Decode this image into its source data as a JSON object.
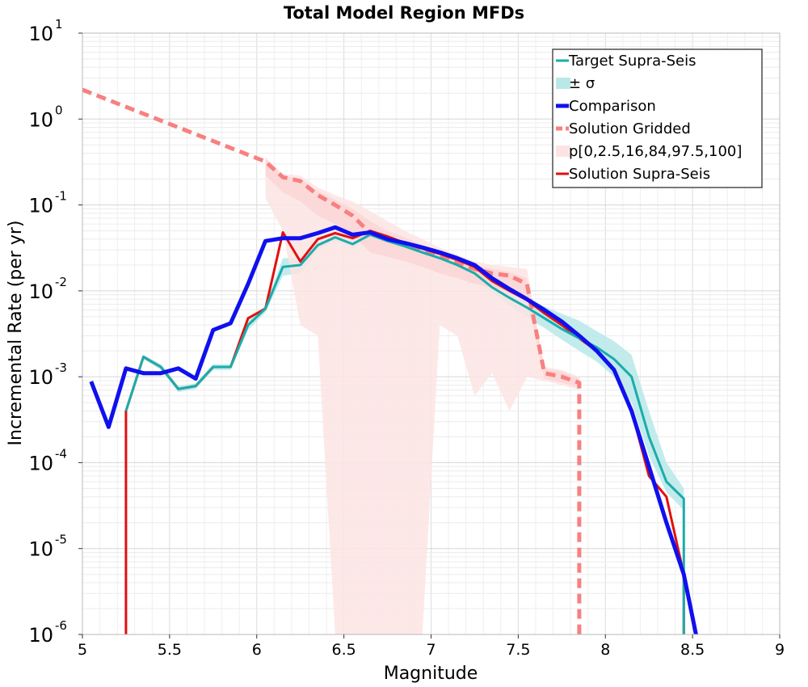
{
  "chart_data": {
    "type": "line",
    "title": "Total Model Region MFDs",
    "xlabel": "Magnitude",
    "ylabel": "Incremental Rate (per yr)",
    "xlim": [
      5,
      9
    ],
    "ylim_log10": [
      -6,
      1
    ],
    "yscale": "log",
    "grid": true,
    "legend_position": "top-right",
    "xticks": [
      5,
      5.5,
      6,
      6.5,
      7,
      7.5,
      8,
      8.5,
      9
    ],
    "xtick_labels": [
      "5",
      "5.5",
      "6",
      "6.5",
      "7",
      "7.5",
      "8",
      "8.5",
      "9"
    ],
    "ytick_exponents": [
      1,
      0,
      -1,
      -2,
      -3,
      -4,
      -5,
      -6
    ],
    "ytick_base": "10",
    "legend": [
      {
        "label": "Target Supra-Seis",
        "style": "line",
        "color": "#1aacac"
      },
      {
        "label": "± σ",
        "style": "band",
        "color": "#b9e8e8"
      },
      {
        "label": "Comparison",
        "style": "thick-line",
        "color": "#1010ee"
      },
      {
        "label": "Solution Gridded",
        "style": "dashed",
        "color": "#f88080"
      },
      {
        "label": "p[0,2.5,16,84,97.5,100]",
        "style": "band",
        "color": "#fde4e4"
      },
      {
        "label": "Solution Supra-Seis",
        "style": "line",
        "color": "#e01010"
      }
    ],
    "series": [
      {
        "name": "Solution Gridded",
        "color": "#f88080",
        "x": [
          5.0,
          5.05,
          6.05,
          6.15,
          6.25,
          6.35,
          6.45,
          6.55,
          6.65,
          6.75,
          6.85,
          6.95,
          7.05,
          7.15,
          7.25,
          7.35,
          7.45,
          7.55,
          7.65,
          7.75,
          7.85,
          7.85
        ],
        "y": [
          2.2,
          2.0,
          0.32,
          0.21,
          0.19,
          0.13,
          0.1,
          0.075,
          0.047,
          0.04,
          0.034,
          0.029,
          0.025,
          0.021,
          0.018,
          0.016,
          0.015,
          0.012,
          0.0011,
          0.001,
          0.00085,
          1e-06
        ]
      },
      {
        "name": "Solution Supra-Seis",
        "color": "#e01010",
        "x": [
          5.25,
          5.25,
          5.35,
          5.45,
          5.55,
          5.65,
          5.75,
          5.85,
          5.95,
          6.05,
          6.15,
          6.25,
          6.35,
          6.45,
          6.55,
          6.65,
          6.75,
          6.85,
          6.95,
          7.05,
          7.15,
          7.25,
          7.35,
          7.45,
          7.55,
          7.65,
          7.75,
          7.85,
          7.95,
          8.05,
          8.15,
          8.25,
          8.35,
          8.45,
          8.45
        ],
        "y": [
          1e-06,
          0.0004,
          0.0017,
          0.0013,
          0.00072,
          0.00078,
          0.0013,
          0.0013,
          0.0048,
          0.0062,
          0.048,
          0.022,
          0.04,
          0.047,
          0.041,
          0.05,
          0.043,
          0.036,
          0.031,
          0.027,
          0.023,
          0.019,
          0.013,
          0.01,
          0.0078,
          0.0055,
          0.004,
          0.0028,
          0.002,
          0.0012,
          0.0004,
          7e-05,
          4e-05,
          5e-06,
          1e-06
        ]
      },
      {
        "name": "Target Supra-Seis",
        "color": "#1aacac",
        "x": [
          5.25,
          5.35,
          5.45,
          5.55,
          5.65,
          5.75,
          5.85,
          5.95,
          6.05,
          6.15,
          6.25,
          6.35,
          6.45,
          6.55,
          6.65,
          6.75,
          6.85,
          6.95,
          7.05,
          7.15,
          7.25,
          7.35,
          7.45,
          7.55,
          7.65,
          7.75,
          7.85,
          7.95,
          8.05,
          8.15,
          8.25,
          8.35,
          8.45,
          8.45
        ],
        "y": [
          0.0004,
          0.0017,
          0.0013,
          0.00072,
          0.00078,
          0.0013,
          0.0013,
          0.004,
          0.0062,
          0.019,
          0.02,
          0.034,
          0.042,
          0.035,
          0.045,
          0.038,
          0.033,
          0.028,
          0.024,
          0.02,
          0.016,
          0.011,
          0.0083,
          0.0064,
          0.0048,
          0.0036,
          0.0028,
          0.0022,
          0.0016,
          0.001,
          0.0002,
          6e-05,
          3.8e-05,
          1e-06
        ]
      },
      {
        "name": "Comparison",
        "color": "#1010ee",
        "x": [
          5.05,
          5.15,
          5.25,
          5.35,
          5.45,
          5.55,
          5.65,
          5.75,
          5.85,
          5.95,
          6.05,
          6.15,
          6.25,
          6.35,
          6.45,
          6.55,
          6.65,
          6.75,
          6.85,
          6.95,
          7.05,
          7.15,
          7.25,
          7.35,
          7.45,
          7.55,
          7.65,
          7.75,
          7.85,
          7.95,
          8.05,
          8.15,
          8.25,
          8.35,
          8.45,
          8.52
        ],
        "y": [
          0.00088,
          0.00026,
          0.00125,
          0.0011,
          0.0011,
          0.00125,
          0.00095,
          0.0035,
          0.0042,
          0.012,
          0.038,
          0.041,
          0.041,
          0.047,
          0.055,
          0.045,
          0.048,
          0.04,
          0.036,
          0.032,
          0.028,
          0.024,
          0.02,
          0.014,
          0.0105,
          0.008,
          0.006,
          0.0044,
          0.003,
          0.002,
          0.0012,
          0.0004,
          9e-05,
          2e-05,
          5e-06,
          1e-06
        ]
      }
    ],
    "bands": [
      {
        "name": "± σ",
        "color": "#b9e8e8",
        "x": [
          5.25,
          5.35,
          5.45,
          5.55,
          5.65,
          5.75,
          5.85,
          5.95,
          6.05,
          6.15,
          6.25,
          6.35,
          6.45,
          6.55,
          6.65,
          6.75,
          6.85,
          6.95,
          7.05,
          7.15,
          7.25,
          7.35,
          7.45,
          7.55,
          7.65,
          7.75,
          7.85,
          7.95,
          8.05,
          8.15,
          8.25,
          8.35,
          8.45
        ],
        "upper": [
          0.00043,
          0.0018,
          0.0014,
          0.00078,
          0.00084,
          0.0014,
          0.0014,
          0.0046,
          0.0068,
          0.024,
          0.024,
          0.038,
          0.046,
          0.039,
          0.049,
          0.042,
          0.037,
          0.031,
          0.027,
          0.023,
          0.018,
          0.0125,
          0.0098,
          0.0082,
          0.0066,
          0.0054,
          0.0045,
          0.0034,
          0.0026,
          0.0018,
          0.0004,
          0.0001,
          5e-05
        ],
        "lower": [
          0.00037,
          0.0016,
          0.0012,
          0.00066,
          0.00072,
          0.0012,
          0.0012,
          0.0035,
          0.0056,
          0.015,
          0.016,
          0.03,
          0.038,
          0.031,
          0.041,
          0.034,
          0.029,
          0.025,
          0.021,
          0.017,
          0.014,
          0.0095,
          0.0068,
          0.005,
          0.0037,
          0.0027,
          0.002,
          0.0015,
          0.001,
          0.0005,
          0.00012,
          4.5e-05,
          2.8e-05
        ]
      },
      {
        "name": "p[0,2.5,16,84,97.5,100]",
        "color": "#fde4e4",
        "x": [
          6.05,
          6.15,
          6.25,
          6.35,
          6.45,
          6.55,
          6.65,
          6.75,
          6.85,
          6.95,
          7.05,
          7.15,
          7.25,
          7.35,
          7.45,
          7.55,
          7.65,
          7.75,
          7.85
        ],
        "upper": [
          0.36,
          0.23,
          0.22,
          0.16,
          0.13,
          0.11,
          0.085,
          0.065,
          0.05,
          0.04,
          0.032,
          0.026,
          0.022,
          0.02,
          0.019,
          0.018,
          0.0013,
          0.0012,
          0.001
        ],
        "lower": [
          0.12,
          0.05,
          0.004,
          0.003,
          1e-06,
          1e-06,
          1e-06,
          1e-06,
          1e-06,
          1e-06,
          0.004,
          0.003,
          0.0006,
          0.0011,
          0.0004,
          0.001,
          0.0009,
          0.0008,
          0.0007
        ]
      },
      {
        "name": "p[16,84]",
        "color": "#fcd6d6",
        "x": [
          6.05,
          6.15,
          6.25,
          6.35,
          6.45,
          6.55,
          6.65,
          6.75,
          6.85,
          6.95,
          7.05,
          7.15,
          7.25,
          7.35,
          7.45,
          7.55,
          7.65,
          7.75,
          7.85
        ],
        "upper": [
          0.34,
          0.22,
          0.2,
          0.145,
          0.115,
          0.09,
          0.065,
          0.05,
          0.042,
          0.034,
          0.029,
          0.024,
          0.02,
          0.018,
          0.0165,
          0.014,
          0.00125,
          0.00115,
          0.00095
        ],
        "lower": [
          0.22,
          0.14,
          0.11,
          0.075,
          0.06,
          0.045,
          0.028,
          0.025,
          0.022,
          0.019,
          0.016,
          0.014,
          0.012,
          0.011,
          0.01,
          0.0085,
          0.00095,
          0.00085,
          0.00075
        ]
      }
    ]
  }
}
